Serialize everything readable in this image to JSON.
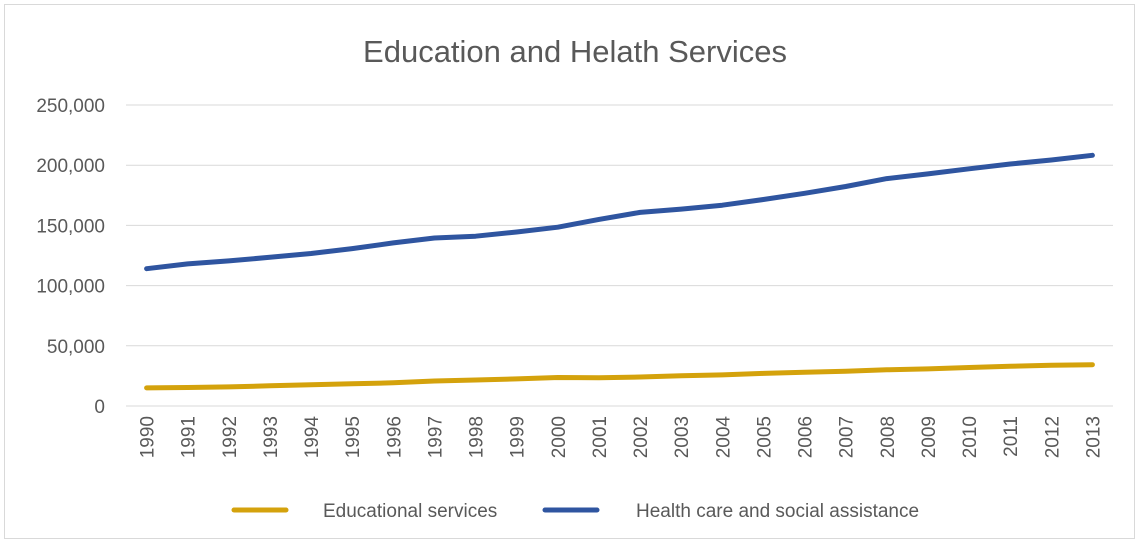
{
  "chart_data": {
    "type": "line",
    "title": "Education and Helath Services",
    "xlabel": "",
    "ylabel": "",
    "categories": [
      "1990",
      "1991",
      "1992",
      "1993",
      "1994",
      "1995",
      "1996",
      "1997",
      "1998",
      "1999",
      "2000",
      "2001",
      "2002",
      "2003",
      "2004",
      "2005",
      "2006",
      "2007",
      "2008",
      "2009",
      "2010",
      "2011",
      "2012",
      "2013"
    ],
    "ylim": [
      0,
      250000
    ],
    "yticks": [
      0,
      50000,
      100000,
      150000,
      200000,
      250000
    ],
    "ytick_labels": [
      "0",
      "50,000",
      "100,000",
      "150,000",
      "200,000",
      "250,000"
    ],
    "grid": true,
    "legend_position": "bottom",
    "series": [
      {
        "name": "Educational services",
        "color": "#d4a20c",
        "values": [
          15000,
          15400,
          15900,
          16800,
          17700,
          18400,
          19300,
          20800,
          21600,
          22500,
          23700,
          23400,
          24100,
          25100,
          25800,
          27100,
          28000,
          28900,
          30100,
          30800,
          32000,
          33000,
          33800,
          34300
        ]
      },
      {
        "name": "Health care and social assistance",
        "color": "#2f55a0",
        "values": [
          114000,
          118000,
          120500,
          123500,
          126700,
          130700,
          135500,
          139500,
          141000,
          144500,
          148500,
          155000,
          160800,
          163500,
          166800,
          171500,
          176700,
          182300,
          188900,
          192800,
          197000,
          201000,
          204300,
          208200
        ]
      }
    ]
  }
}
